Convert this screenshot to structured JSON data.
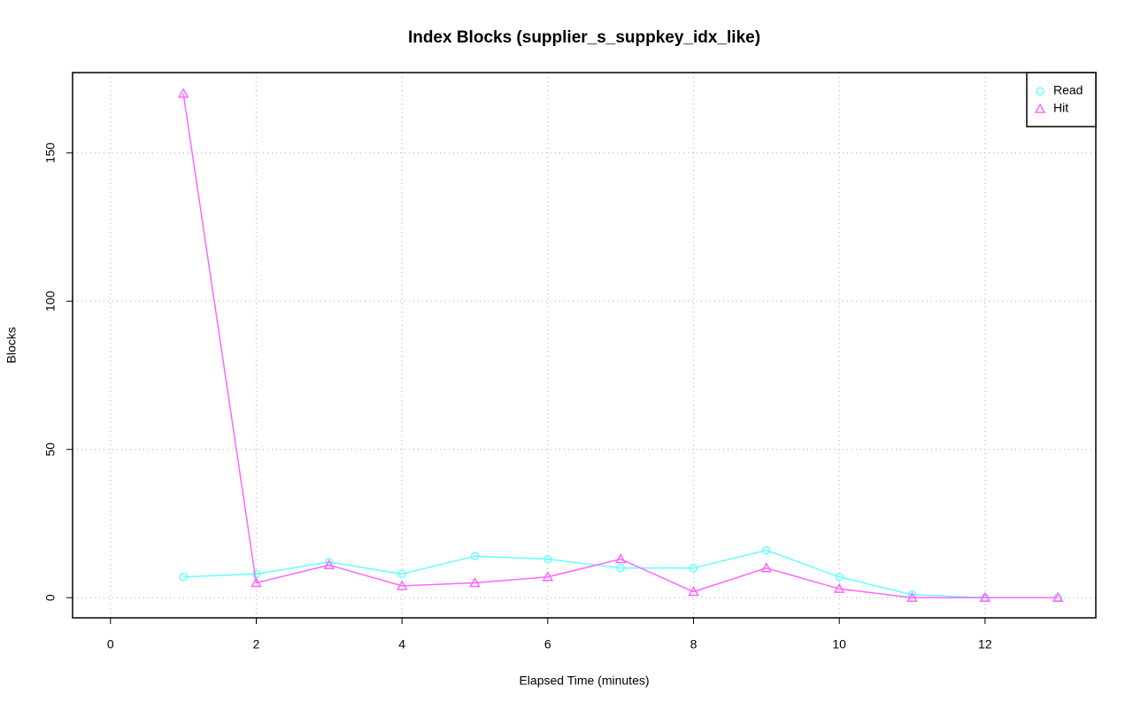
{
  "chart_data": {
    "type": "line",
    "title": "Index Blocks (supplier_s_suppkey_idx_like)",
    "x_label": "Elapsed Time (minutes)",
    "y_label": "Blocks",
    "x": [
      1,
      2,
      3,
      4,
      5,
      6,
      7,
      8,
      9,
      10,
      11,
      12,
      13
    ],
    "series": [
      {
        "name": "Read",
        "color": "#66ffff",
        "marker": "circle",
        "values": [
          7,
          8,
          12,
          8,
          14,
          13,
          10,
          10,
          16,
          7,
          1,
          0,
          0
        ]
      },
      {
        "name": "Hit",
        "color": "#ff66ff",
        "marker": "triangle",
        "values": [
          170,
          5,
          11,
          4,
          5,
          7,
          13,
          2,
          10,
          3,
          0,
          0,
          0
        ]
      }
    ],
    "xlim": [
      -0.52,
      13.52
    ],
    "ylim": [
      -6.8,
      177.1
    ],
    "xticks": [
      0,
      2,
      4,
      6,
      8,
      10,
      12
    ],
    "yticks": [
      0,
      50,
      100,
      150
    ],
    "grid": true,
    "legend_position": "top-right"
  }
}
